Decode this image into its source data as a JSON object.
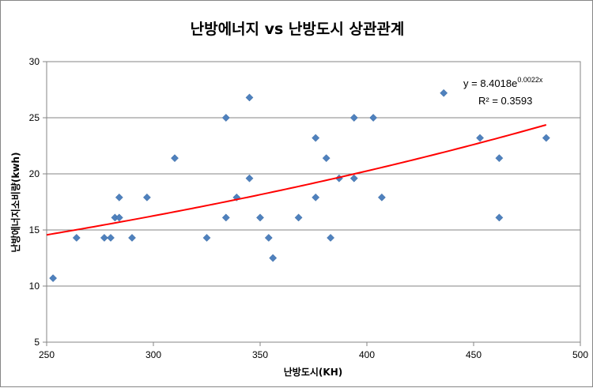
{
  "chart_data": {
    "type": "scatter",
    "title": "난방에너지 vs 난방도시 상관관계",
    "xlabel": "난방도시(KH)",
    "ylabel": "난방에너지소비량(kwh)",
    "xlim": [
      250,
      500
    ],
    "ylim": [
      5,
      30
    ],
    "x_ticks": [
      "250",
      "300",
      "350",
      "400",
      "450",
      "500"
    ],
    "y_ticks": [
      "5",
      "10",
      "15",
      "20",
      "25",
      "30"
    ],
    "grid": "horizontal major gridlines",
    "legend": "none",
    "series": [
      {
        "marker": "diamond",
        "color": "#4f81bd",
        "points": [
          [
            253,
            10.7
          ],
          [
            264,
            14.3
          ],
          [
            277,
            14.3
          ],
          [
            280,
            14.3
          ],
          [
            282,
            16.1
          ],
          [
            284,
            16.1
          ],
          [
            284,
            17.9
          ],
          [
            290,
            14.3
          ],
          [
            297,
            17.9
          ],
          [
            310,
            21.4
          ],
          [
            325,
            14.3
          ],
          [
            334,
            25.0
          ],
          [
            334,
            16.1
          ],
          [
            339,
            17.9
          ],
          [
            345,
            26.8
          ],
          [
            345,
            19.6
          ],
          [
            350,
            16.1
          ],
          [
            354,
            14.3
          ],
          [
            356,
            12.5
          ],
          [
            368,
            16.1
          ],
          [
            376,
            23.2
          ],
          [
            376,
            17.9
          ],
          [
            381,
            21.4
          ],
          [
            383,
            14.3
          ],
          [
            387,
            19.6
          ],
          [
            394,
            25.0
          ],
          [
            394,
            19.6
          ],
          [
            403,
            25.0
          ],
          [
            407,
            17.9
          ],
          [
            436,
            27.2
          ],
          [
            453,
            23.2
          ],
          [
            462,
            21.4
          ],
          [
            462,
            16.1
          ],
          [
            484,
            23.2
          ]
        ]
      }
    ],
    "trendline": {
      "type": "exponential",
      "color": "#ff0000",
      "a": 8.4018,
      "b": 0.0022,
      "x_range": [
        250,
        484
      ],
      "equation_prefix": "y = 8.4018e",
      "equation_exponent": "0.0022x",
      "r2_text": "R² = 0.3593"
    }
  }
}
